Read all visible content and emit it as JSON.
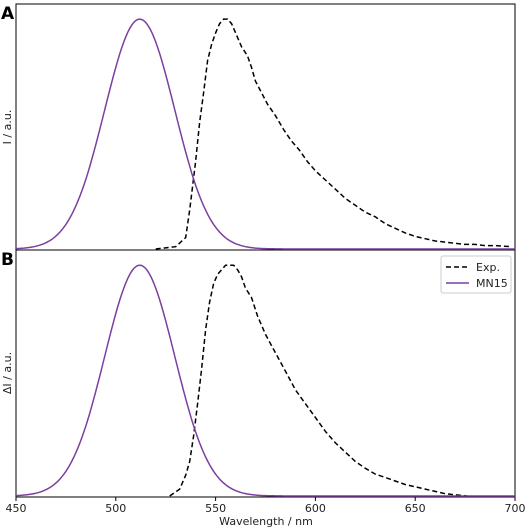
{
  "chart_data": [
    {
      "type": "line",
      "panel_label": "A",
      "ylabel": "I / a.u.",
      "xlim": [
        450,
        700
      ],
      "ylim": [
        0,
        1.07
      ],
      "yticks_shown": false,
      "legend": null,
      "series": [
        {
          "name": "Exp.",
          "style": "dashed",
          "color": "#000000",
          "x": [
            520,
            530,
            535,
            537,
            540,
            542,
            544,
            546,
            548,
            550,
            552,
            554,
            556,
            558,
            560,
            563,
            566,
            568,
            570,
            573,
            576,
            580,
            584,
            588,
            592,
            596,
            600,
            605,
            610,
            615,
            620,
            625,
            630,
            635,
            640,
            645,
            650,
            655,
            660,
            665,
            670,
            675,
            680,
            685,
            690,
            698
          ],
          "y": [
            0.0,
            0.01,
            0.05,
            0.17,
            0.38,
            0.55,
            0.68,
            0.82,
            0.89,
            0.94,
            0.98,
            1.0,
            1.0,
            0.98,
            0.94,
            0.88,
            0.84,
            0.79,
            0.73,
            0.68,
            0.63,
            0.58,
            0.52,
            0.47,
            0.43,
            0.38,
            0.34,
            0.3,
            0.26,
            0.22,
            0.19,
            0.16,
            0.14,
            0.11,
            0.09,
            0.07,
            0.055,
            0.045,
            0.035,
            0.03,
            0.025,
            0.02,
            0.02,
            0.015,
            0.015,
            0.01
          ]
        },
        {
          "name": "MN15",
          "style": "solid",
          "color": "#7b3f9e",
          "peak": 512,
          "sigma": 17.5,
          "amplitude": 1.0
        }
      ]
    },
    {
      "type": "line",
      "panel_label": "B",
      "ylabel": "ΔI / a.u.",
      "xlabel": "Wavelength / nm",
      "xlim": [
        450,
        700
      ],
      "ylim": [
        0,
        1.07
      ],
      "xticks": [
        450,
        500,
        550,
        600,
        650,
        700
      ],
      "yticks_shown": false,
      "legend": "top-right",
      "series": [
        {
          "name": "Exp.",
          "style": "dashed",
          "color": "#000000",
          "x": [
            527,
            532,
            535,
            537,
            539,
            541,
            543,
            545,
            547,
            549,
            551,
            553,
            555,
            557,
            559,
            561,
            563,
            565,
            568,
            571,
            575,
            580,
            585,
            590,
            595,
            600,
            605,
            610,
            615,
            620,
            625,
            630,
            635,
            640,
            645,
            650,
            655,
            660,
            665,
            670,
            676
          ],
          "y": [
            0.0,
            0.03,
            0.09,
            0.15,
            0.26,
            0.4,
            0.55,
            0.72,
            0.84,
            0.92,
            0.96,
            0.98,
            1.0,
            1.0,
            1.0,
            0.98,
            0.95,
            0.9,
            0.86,
            0.78,
            0.7,
            0.62,
            0.54,
            0.46,
            0.4,
            0.34,
            0.28,
            0.23,
            0.19,
            0.15,
            0.12,
            0.095,
            0.08,
            0.065,
            0.05,
            0.04,
            0.03,
            0.02,
            0.01,
            0.005,
            0.0
          ]
        },
        {
          "name": "MN15",
          "style": "solid",
          "color": "#7b3f9e",
          "peak": 512,
          "sigma": 17.5,
          "amplitude": 1.0
        }
      ]
    }
  ]
}
